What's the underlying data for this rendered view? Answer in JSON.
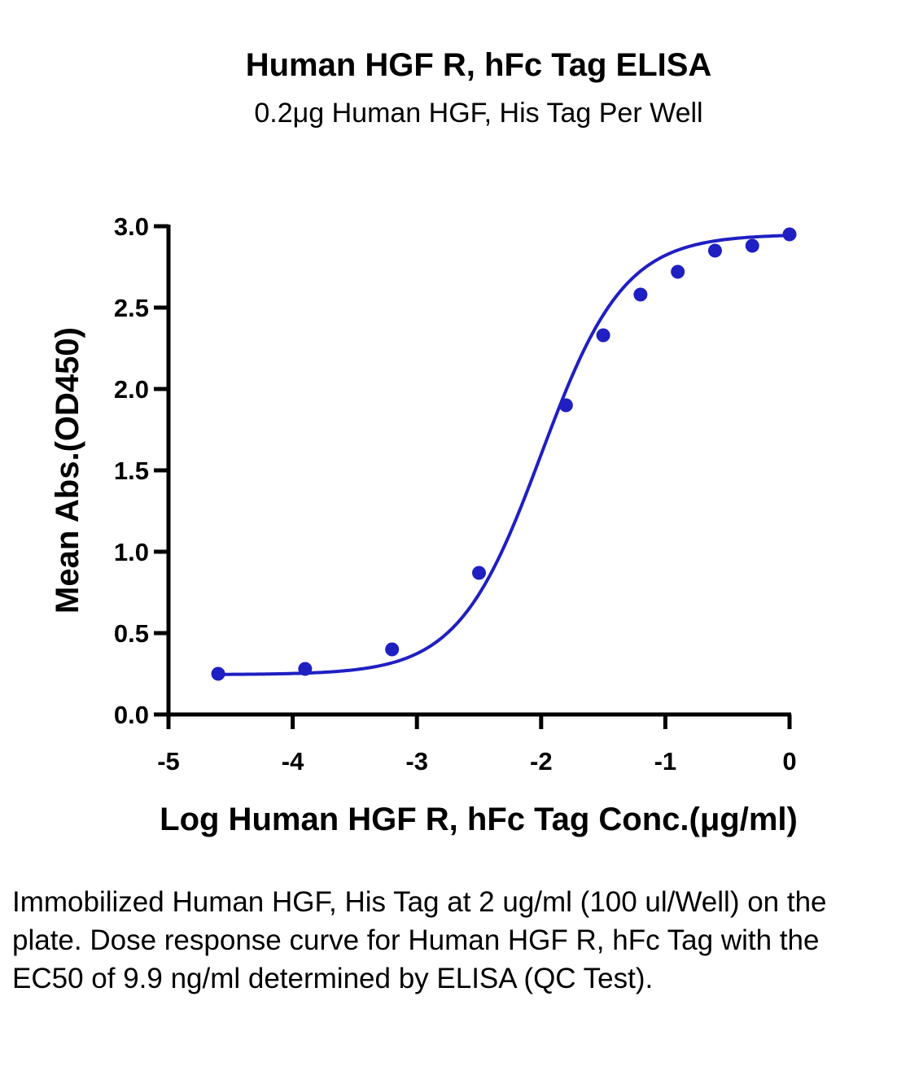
{
  "chart_data": {
    "type": "line",
    "title": "Human HGF R, hFc Tag ELISA",
    "subtitle": "0.2μg Human HGF, His Tag Per Well",
    "xlabel": "Log Human HGF R, hFc Tag Conc.(μg/ml)",
    "ylabel": "Mean Abs.(OD450)",
    "xlim": [
      -5,
      0
    ],
    "ylim": [
      0,
      3
    ],
    "x_ticks": [
      "-5",
      "-4",
      "-3",
      "-2",
      "-1",
      "0"
    ],
    "y_ticks": [
      "0.0",
      "0.5",
      "1.0",
      "1.5",
      "2.0",
      "2.5",
      "3.0"
    ],
    "grid": false,
    "series": [
      {
        "points": [
          {
            "x": -4.6,
            "y": 0.25
          },
          {
            "x": -3.9,
            "y": 0.28
          },
          {
            "x": -3.2,
            "y": 0.4
          },
          {
            "x": -2.5,
            "y": 0.87
          },
          {
            "x": -1.8,
            "y": 1.9
          },
          {
            "x": -1.5,
            "y": 2.33
          },
          {
            "x": -1.2,
            "y": 2.58
          },
          {
            "x": -0.9,
            "y": 2.72
          },
          {
            "x": -0.6,
            "y": 2.85
          },
          {
            "x": -0.3,
            "y": 2.88
          },
          {
            "x": 0.0,
            "y": 2.95
          }
        ],
        "fit": {
          "model": "4PL",
          "bottom": 0.245,
          "top": 2.95,
          "logEC50": -2.0,
          "hill": 1.3
        }
      }
    ],
    "colors": {
      "series": "#1f1fc2",
      "axis": "#000000"
    }
  },
  "caption": "Immobilized Human HGF, His Tag at 2 ug/ml (100 ul/Well) on the plate. Dose response curve for Human HGF R, hFc Tag with the EC50 of 9.9 ng/ml determined by ELISA (QC Test)."
}
